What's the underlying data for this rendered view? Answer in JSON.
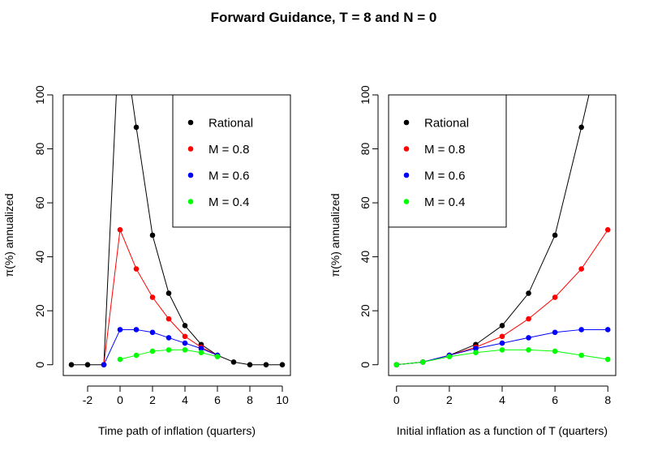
{
  "figure": {
    "title": "Forward Guidance, T = 8 and N = 0"
  },
  "chart_data": [
    {
      "type": "line",
      "xlabel": "Time path of inflation (quarters)",
      "ylabel": "π(%) annualized",
      "xlim": [
        -3.5,
        10.5
      ],
      "ylim": [
        -4,
        100
      ],
      "xticks": [
        -2,
        0,
        2,
        4,
        6,
        8,
        10
      ],
      "yticks": [
        0,
        20,
        40,
        60,
        80,
        100
      ],
      "grid": false,
      "legend_position": "top-right",
      "series": [
        {
          "name": "Rational",
          "color": "#000000",
          "x": [
            -3,
            -2,
            -1,
            0,
            1,
            2,
            3,
            4,
            5,
            6,
            7,
            8,
            9,
            10
          ],
          "y": [
            0,
            0,
            0,
            130,
            88,
            48,
            26.5,
            14.5,
            7.5,
            3.5,
            1,
            0,
            0,
            0
          ]
        },
        {
          "name": "M = 0.8",
          "color": "#ff0000",
          "x": [
            -1,
            0,
            1,
            2,
            3,
            4,
            5,
            6
          ],
          "y": [
            0,
            50,
            35.5,
            25,
            17,
            10.5,
            6.5,
            3.5
          ]
        },
        {
          "name": "M = 0.6",
          "color": "#0000ff",
          "x": [
            -1,
            0,
            1,
            2,
            3,
            4,
            5,
            6
          ],
          "y": [
            0,
            13,
            13,
            12,
            10,
            8,
            6,
            3.5
          ]
        },
        {
          "name": "M = 0.4",
          "color": "#00ff00",
          "x": [
            0,
            1,
            2,
            3,
            4,
            5,
            6
          ],
          "y": [
            2,
            3.5,
            5,
            5.5,
            5.5,
            4.5,
            3
          ]
        }
      ]
    },
    {
      "type": "line",
      "xlabel": "Initial inflation as a function of T (quarters)",
      "ylabel": "π(%) annualized",
      "xlim": [
        -0.3,
        8.3
      ],
      "ylim": [
        -4,
        100
      ],
      "xticks": [
        0,
        2,
        4,
        6,
        8
      ],
      "yticks": [
        0,
        20,
        40,
        60,
        80,
        100
      ],
      "grid": false,
      "legend_position": "top-left",
      "series": [
        {
          "name": "Rational",
          "color": "#000000",
          "x": [
            0,
            1,
            2,
            3,
            4,
            5,
            6,
            7,
            8
          ],
          "y": [
            0,
            1,
            3.5,
            7.5,
            14.5,
            26.5,
            48,
            88,
            130
          ]
        },
        {
          "name": "M = 0.8",
          "color": "#ff0000",
          "x": [
            0,
            1,
            2,
            3,
            4,
            5,
            6,
            7,
            8
          ],
          "y": [
            0,
            1,
            3.5,
            6.5,
            10.5,
            17,
            25,
            35.5,
            50
          ]
        },
        {
          "name": "M = 0.6",
          "color": "#0000ff",
          "x": [
            0,
            1,
            2,
            3,
            4,
            5,
            6,
            7,
            8
          ],
          "y": [
            0,
            1,
            3.5,
            6,
            8,
            10,
            12,
            13,
            13
          ]
        },
        {
          "name": "M = 0.4",
          "color": "#00ff00",
          "x": [
            0,
            1,
            2,
            3,
            4,
            5,
            6,
            7,
            8
          ],
          "y": [
            0,
            1,
            3,
            4.5,
            5.5,
            5.5,
            5,
            3.5,
            2
          ]
        }
      ]
    }
  ]
}
